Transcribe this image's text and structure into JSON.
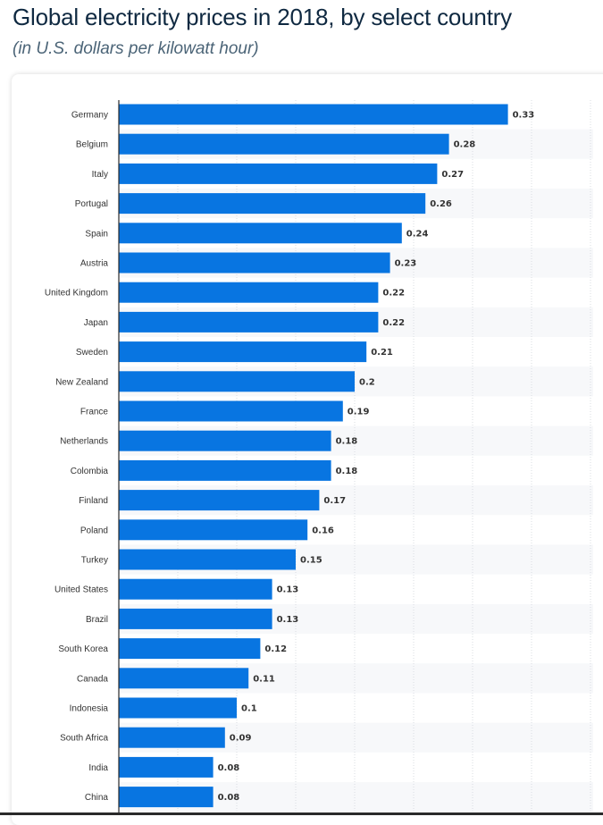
{
  "header": {
    "title": "Global electricity prices in 2018, by select country",
    "subtitle": "(in U.S. dollars per kilowatt hour)"
  },
  "colors": {
    "bar": "#0875e1",
    "stripe": "#f7f8fa",
    "grid": "#d9dde2",
    "axis": "#2b2b2b",
    "label": "#333333"
  },
  "chart_data": {
    "type": "bar",
    "orientation": "horizontal",
    "categories": [
      "Germany",
      "Belgium",
      "Italy",
      "Portugal",
      "Spain",
      "Austria",
      "United Kingdom",
      "Japan",
      "Sweden",
      "New Zealand",
      "France",
      "Netherlands",
      "Colombia",
      "Finland",
      "Poland",
      "Turkey",
      "United States",
      "Brazil",
      "South Korea",
      "Canada",
      "Indonesia",
      "South Africa",
      "India",
      "China"
    ],
    "values": [
      0.33,
      0.28,
      0.27,
      0.26,
      0.24,
      0.23,
      0.22,
      0.22,
      0.21,
      0.2,
      0.19,
      0.18,
      0.18,
      0.17,
      0.16,
      0.15,
      0.13,
      0.13,
      0.12,
      0.11,
      0.1,
      0.09,
      0.08,
      0.08
    ],
    "value_labels": [
      "0.33",
      "0.28",
      "0.27",
      "0.26",
      "0.24",
      "0.23",
      "0.22",
      "0.22",
      "0.21",
      "0.2",
      "0.19",
      "0.18",
      "0.18",
      "0.17",
      "0.16",
      "0.15",
      "0.13",
      "0.13",
      "0.12",
      "0.11",
      "0.1",
      "0.09",
      "0.08",
      "0.08"
    ],
    "xlim": [
      0,
      0.4
    ],
    "grid": true,
    "legend": "none"
  }
}
